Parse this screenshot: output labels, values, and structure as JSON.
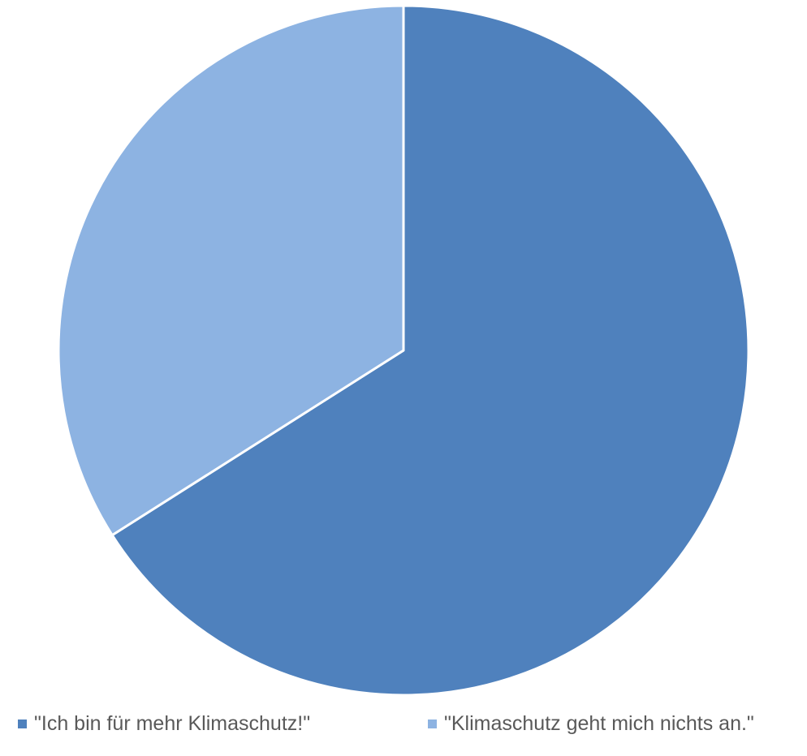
{
  "chart_data": {
    "type": "pie",
    "title": "",
    "categories": [
      "\"Ich bin für mehr Klimaschutz!\"",
      "\"Klimaschutz geht mich nichts an.\""
    ],
    "values": [
      66,
      34
    ],
    "colors": [
      "#4f81bd",
      "#8db3e2"
    ],
    "start_angle_deg": 0,
    "direction": "clockwise",
    "legend_position": "bottom"
  }
}
